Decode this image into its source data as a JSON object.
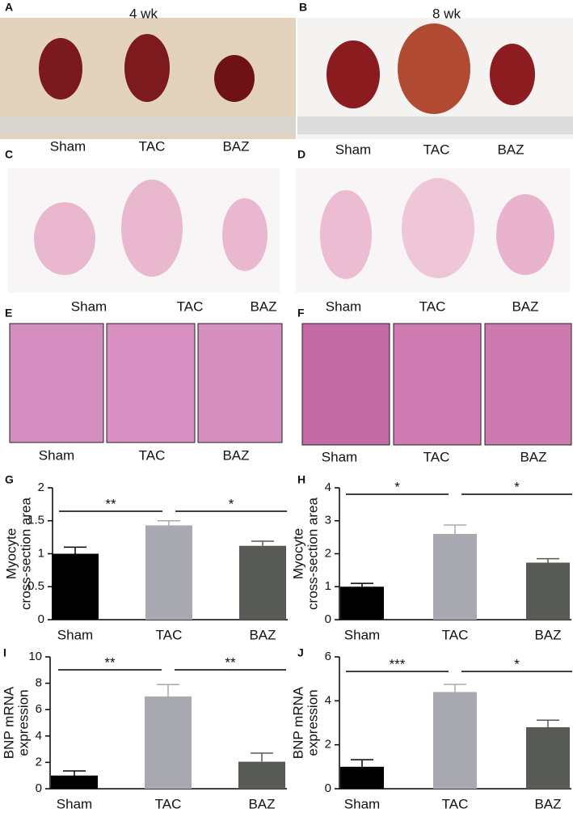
{
  "panels": [
    {
      "letter": "A",
      "title": "4 wk",
      "labels": [
        "Sham",
        "TAC",
        "BAZ"
      ]
    },
    {
      "letter": "B",
      "title": "8 wk",
      "labels": [
        "Sham",
        "TAC",
        "BAZ"
      ]
    },
    {
      "letter": "C",
      "labels": [
        "Sham",
        "TAC",
        "BAZ"
      ]
    },
    {
      "letter": "D",
      "labels": [
        "Sham",
        "TAC",
        "BAZ"
      ]
    },
    {
      "letter": "E",
      "labels": [
        "Sham",
        "TAC",
        "BAZ"
      ]
    },
    {
      "letter": "F",
      "labels": [
        "Sham",
        "TAC",
        "BAZ"
      ]
    }
  ],
  "chart_data": [
    {
      "type": "bar",
      "letter": "G",
      "ylabel": [
        "Myocyte",
        "cross-section area"
      ],
      "categories": [
        "Sham",
        "TAC",
        "BAZ"
      ],
      "values": [
        1.0,
        1.43,
        1.12
      ],
      "errors": [
        0.1,
        0.07,
        0.07
      ],
      "colors": [
        "#000000",
        "#a9a9b1",
        "#575a55"
      ],
      "ylim": [
        0,
        2
      ],
      "yticks": [
        0,
        0.5,
        1,
        1.5,
        2
      ],
      "annotations": [
        {
          "text": "**",
          "between": [
            "Sham",
            "TAC"
          ]
        },
        {
          "text": "*",
          "between": [
            "TAC",
            "BAZ"
          ]
        }
      ]
    },
    {
      "type": "bar",
      "letter": "H",
      "ylabel": [
        "Myocyte",
        "cross-section area"
      ],
      "categories": [
        "Sham",
        "TAC",
        "BAZ"
      ],
      "values": [
        1.0,
        2.6,
        1.73
      ],
      "errors": [
        0.1,
        0.27,
        0.12
      ],
      "colors": [
        "#000000",
        "#a9a9b1",
        "#575a55"
      ],
      "ylim": [
        0,
        4
      ],
      "yticks": [
        0,
        1,
        2,
        3,
        4
      ],
      "annotations": [
        {
          "text": "*",
          "between": [
            "Sham",
            "TAC"
          ]
        },
        {
          "text": "*",
          "between": [
            "TAC",
            "BAZ"
          ]
        }
      ]
    },
    {
      "type": "bar",
      "letter": "I",
      "ylabel": [
        "BNP mRNA",
        "expression"
      ],
      "categories": [
        "Sham",
        "TAC",
        "BAZ"
      ],
      "values": [
        1.0,
        7.0,
        2.05
      ],
      "errors": [
        0.35,
        0.9,
        0.65
      ],
      "colors": [
        "#000000",
        "#a9a9b1",
        "#575a55"
      ],
      "ylim": [
        0,
        10
      ],
      "yticks": [
        0,
        2,
        4,
        6,
        8,
        10
      ],
      "annotations": [
        {
          "text": "**",
          "between": [
            "Sham",
            "TAC"
          ]
        },
        {
          "text": "**",
          "between": [
            "TAC",
            "BAZ"
          ]
        }
      ]
    },
    {
      "type": "bar",
      "letter": "J",
      "ylabel": [
        "BNP mRNA",
        "expression"
      ],
      "categories": [
        "Sham",
        "TAC",
        "BAZ"
      ],
      "values": [
        1.0,
        4.4,
        2.8
      ],
      "errors": [
        0.32,
        0.35,
        0.32
      ],
      "colors": [
        "#000000",
        "#a9a9b1",
        "#575a55"
      ],
      "ylim": [
        0,
        6
      ],
      "yticks": [
        0,
        2,
        4,
        6
      ],
      "annotations": [
        {
          "text": "***",
          "between": [
            "Sham",
            "TAC"
          ]
        },
        {
          "text": "*",
          "between": [
            "TAC",
            "BAZ"
          ]
        }
      ]
    }
  ]
}
